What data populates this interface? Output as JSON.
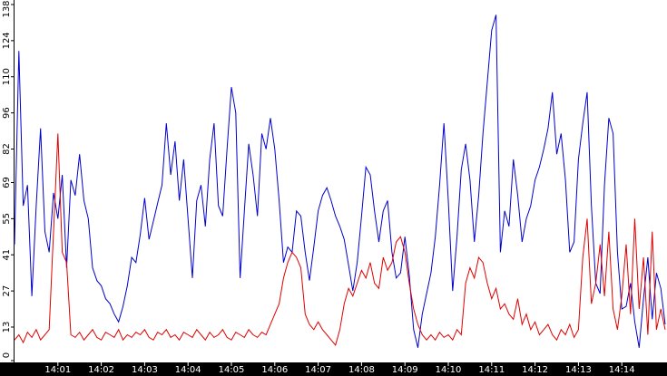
{
  "chart_data": {
    "type": "line",
    "ylim": [
      0,
      138
    ],
    "yticks": [
      0,
      13,
      27,
      41,
      55,
      69,
      82,
      96,
      110,
      124,
      138
    ],
    "categories": [
      null,
      null,
      null,
      null,
      null,
      null,
      null,
      null,
      null,
      null,
      "14:01",
      null,
      null,
      null,
      null,
      null,
      null,
      null,
      null,
      null,
      "14:02",
      null,
      null,
      null,
      null,
      null,
      null,
      null,
      null,
      null,
      "14:03",
      null,
      null,
      null,
      null,
      null,
      null,
      null,
      null,
      null,
      "14:04",
      null,
      null,
      null,
      null,
      null,
      null,
      null,
      null,
      null,
      "14:05",
      null,
      null,
      null,
      null,
      null,
      null,
      null,
      null,
      null,
      "14:06",
      null,
      null,
      null,
      null,
      null,
      null,
      null,
      null,
      null,
      "14:07",
      null,
      null,
      null,
      null,
      null,
      null,
      null,
      null,
      null,
      "14:08",
      null,
      null,
      null,
      null,
      null,
      null,
      null,
      null,
      null,
      "14:09",
      null,
      null,
      null,
      null,
      null,
      null,
      null,
      null,
      null,
      "14:10",
      null,
      null,
      null,
      null,
      null,
      null,
      null,
      null,
      null,
      "14:11",
      null,
      null,
      null,
      null,
      null,
      null,
      null,
      null,
      null,
      "14:12",
      null,
      null,
      null,
      null,
      null,
      null,
      null,
      null,
      null,
      "14:13",
      null,
      null,
      null,
      null,
      null,
      null,
      null,
      null,
      null,
      "14:14",
      null,
      null,
      null,
      null,
      null,
      null,
      null,
      null,
      null,
      null
    ],
    "series": [
      {
        "color": "#0000cc",
        "values": [
          45,
          120,
          60,
          68,
          25,
          60,
          90,
          50,
          42,
          65,
          55,
          72,
          36,
          70,
          64,
          80,
          62,
          55,
          36,
          31,
          29,
          24,
          22,
          18,
          15,
          21,
          29,
          40,
          38,
          49,
          63,
          47,
          54,
          61,
          68,
          92,
          72,
          85,
          62,
          78,
          55,
          32,
          62,
          68,
          52,
          78,
          92,
          60,
          56,
          82,
          106,
          96,
          32,
          58,
          84,
          72,
          56,
          88,
          82,
          94,
          82,
          62,
          38,
          44,
          42,
          58,
          56,
          42,
          31,
          44,
          58,
          64,
          67,
          62,
          56,
          52,
          47,
          37,
          27,
          38,
          56,
          75,
          72,
          58,
          46,
          58,
          62,
          42,
          32,
          34,
          48,
          33,
          12,
          5,
          18,
          26,
          34,
          48,
          68,
          92,
          62,
          27,
          48,
          74,
          84,
          70,
          46,
          64,
          88,
          108,
          128,
          134,
          42,
          58,
          52,
          78,
          64,
          46,
          55,
          60,
          70,
          75,
          82,
          90,
          104,
          80,
          88,
          70,
          42,
          46,
          78,
          92,
          104,
          60,
          30,
          26,
          68,
          94,
          88,
          42,
          20,
          21,
          30,
          15,
          5,
          24,
          40,
          16,
          34,
          28,
          14
        ]
      },
      {
        "color": "#e00000",
        "values": [
          8,
          10,
          7,
          11,
          9,
          12,
          8,
          10,
          12,
          50,
          88,
          42,
          38,
          10,
          9,
          11,
          8,
          10,
          12,
          9,
          8,
          11,
          10,
          9,
          12,
          8,
          10,
          9,
          11,
          10,
          12,
          9,
          8,
          11,
          10,
          12,
          9,
          10,
          8,
          11,
          10,
          9,
          12,
          10,
          8,
          11,
          9,
          10,
          12,
          9,
          8,
          11,
          10,
          9,
          12,
          10,
          9,
          11,
          10,
          14,
          18,
          22,
          32,
          38,
          42,
          40,
          36,
          18,
          14,
          12,
          15,
          12,
          10,
          8,
          6,
          12,
          22,
          28,
          25,
          30,
          35,
          32,
          38,
          30,
          28,
          40,
          35,
          38,
          46,
          48,
          42,
          30,
          20,
          14,
          10,
          8,
          10,
          8,
          11,
          9,
          10,
          8,
          12,
          10,
          30,
          36,
          32,
          40,
          38,
          30,
          24,
          28,
          20,
          22,
          18,
          16,
          24,
          14,
          18,
          12,
          15,
          10,
          12,
          14,
          10,
          8,
          12,
          10,
          14,
          9,
          12,
          40,
          55,
          22,
          30,
          45,
          25,
          50,
          20,
          12,
          25,
          45,
          18,
          55,
          20,
          40,
          10,
          50,
          12,
          20,
          12
        ]
      }
    ]
  }
}
